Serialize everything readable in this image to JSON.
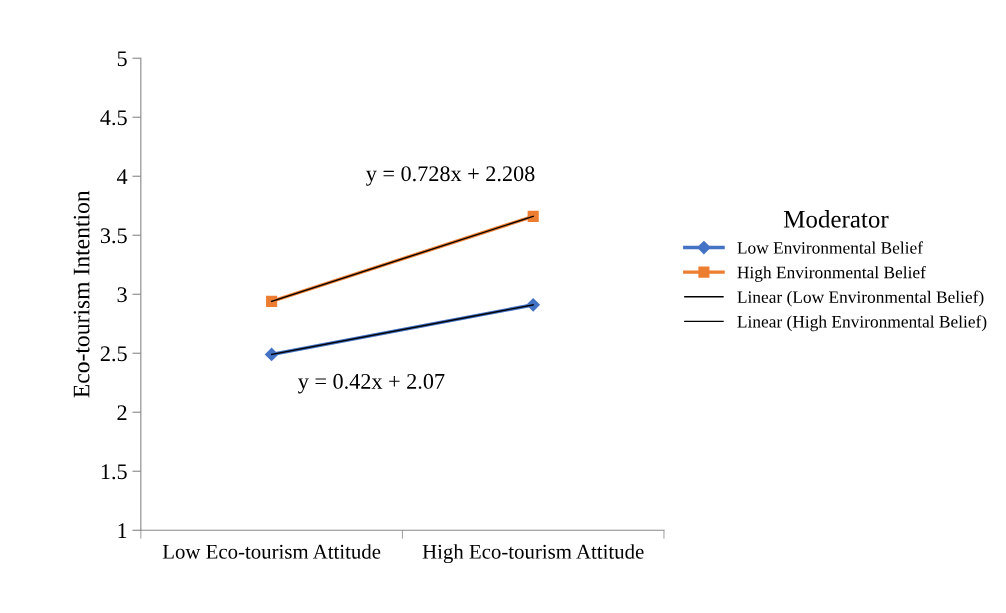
{
  "chart_data": {
    "type": "line",
    "ylabel": "Eco-tourism Intention",
    "legend_title": "Moderator",
    "categories": [
      "Low Eco-tourism Attitude",
      "High Eco-tourism Attitude"
    ],
    "series": [
      {
        "name": "Low Environmental Belief",
        "color": "#4472c4",
        "marker": "diamond",
        "values": [
          2.49,
          2.91
        ]
      },
      {
        "name": "High Environmental Belief",
        "color": "#ed7d31",
        "marker": "square",
        "values": [
          2.94,
          3.66
        ]
      },
      {
        "name": "Linear (Low Environmental Belief)",
        "color": "#000000",
        "marker": "none",
        "values": [
          2.49,
          2.91
        ]
      },
      {
        "name": "Linear (High Environmental Belief)",
        "color": "#000000",
        "marker": "none",
        "values": [
          2.94,
          3.66
        ]
      }
    ],
    "annotations": [
      "y = 0.728x + 2.208",
      "y = 0.42x + 2.07"
    ],
    "ylim": [
      1,
      5
    ],
    "yticks": [
      1,
      1.5,
      2,
      2.5,
      3,
      3.5,
      4,
      4.5,
      5
    ],
    "grid": false,
    "legend": "right"
  }
}
